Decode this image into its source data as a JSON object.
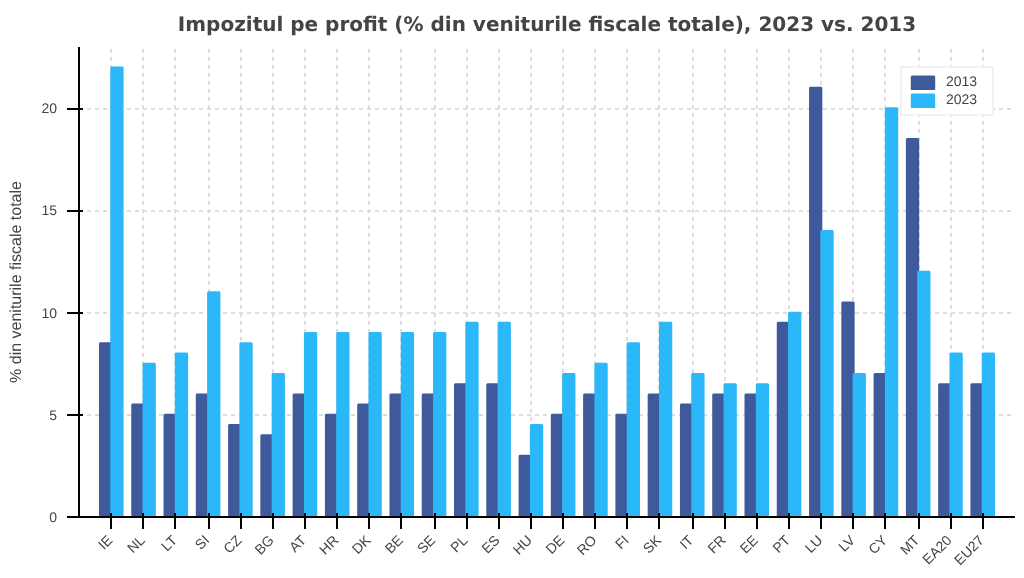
{
  "chart_data": {
    "type": "bar",
    "title": "Impozitul pe profit (% din veniturile fiscale totale), 2023 vs. 2013",
    "ylabel": "% din veniturile fiscale totale",
    "categories": [
      "IE",
      "NL",
      "LT",
      "SI",
      "CZ",
      "BG",
      "AT",
      "HR",
      "DK",
      "BE",
      "SE",
      "PL",
      "ES",
      "HU",
      "DE",
      "RO",
      "FI",
      "SK",
      "IT",
      "FR",
      "EE",
      "PT",
      "LU",
      "LV",
      "CY",
      "MT",
      "EA20",
      "EU27"
    ],
    "series": [
      {
        "name": "2013",
        "color": "#3f5a9a",
        "values": [
          8.5,
          5.5,
          5,
          6,
          4.5,
          4,
          6,
          5,
          5.5,
          6,
          6,
          6.5,
          6.5,
          3,
          5,
          6,
          5,
          6,
          5.5,
          6,
          6,
          9.5,
          21,
          10.5,
          7,
          18.5,
          6.5,
          6.5
        ]
      },
      {
        "name": "2023",
        "color": "#2bb8f8",
        "values": [
          22,
          7.5,
          8,
          11,
          8.5,
          7,
          9,
          9,
          9,
          9,
          9,
          9.5,
          9.5,
          4.5,
          7,
          7.5,
          8.5,
          9.5,
          7,
          6.5,
          6.5,
          10,
          14,
          7,
          20,
          12,
          8,
          8
        ]
      }
    ],
    "ylim": [
      0,
      23
    ],
    "yticks": [
      0,
      5,
      10,
      15,
      20
    ],
    "grid": true,
    "legend": "top right"
  }
}
